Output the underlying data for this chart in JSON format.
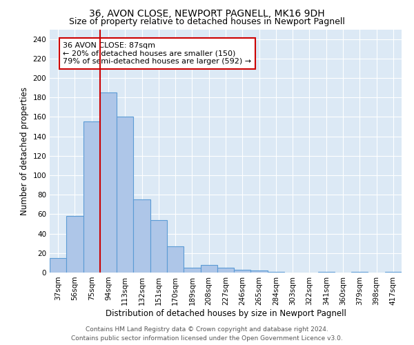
{
  "title": "36, AVON CLOSE, NEWPORT PAGNELL, MK16 9DH",
  "subtitle": "Size of property relative to detached houses in Newport Pagnell",
  "xlabel": "Distribution of detached houses by size in Newport Pagnell",
  "ylabel": "Number of detached properties",
  "categories": [
    "37sqm",
    "56sqm",
    "75sqm",
    "94sqm",
    "113sqm",
    "132sqm",
    "151sqm",
    "170sqm",
    "189sqm",
    "208sqm",
    "227sqm",
    "246sqm",
    "265sqm",
    "284sqm",
    "303sqm",
    "322sqm",
    "341sqm",
    "360sqm",
    "379sqm",
    "398sqm",
    "417sqm"
  ],
  "bar_values": [
    15,
    58,
    155,
    185,
    160,
    75,
    54,
    27,
    5,
    8,
    5,
    3,
    2,
    1,
    0,
    0,
    1,
    0,
    1,
    0,
    1
  ],
  "bar_color": "#aec6e8",
  "bar_edge_color": "#5b9bd5",
  "vline_x_index": 2.5,
  "vline_color": "#cc0000",
  "annotation_text": "36 AVON CLOSE: 87sqm\n← 20% of detached houses are smaller (150)\n79% of semi-detached houses are larger (592) →",
  "annotation_box_color": "#ffffff",
  "annotation_box_edgecolor": "#cc0000",
  "ylim": [
    0,
    250
  ],
  "yticks": [
    0,
    20,
    40,
    60,
    80,
    100,
    120,
    140,
    160,
    180,
    200,
    220,
    240
  ],
  "background_color": "#dce9f5",
  "footer_line1": "Contains HM Land Registry data © Crown copyright and database right 2024.",
  "footer_line2": "Contains public sector information licensed under the Open Government Licence v3.0.",
  "title_fontsize": 10,
  "subtitle_fontsize": 9,
  "xlabel_fontsize": 8.5,
  "ylabel_fontsize": 8.5,
  "tick_fontsize": 7.5,
  "footer_fontsize": 6.5,
  "annotation_fontsize": 8
}
